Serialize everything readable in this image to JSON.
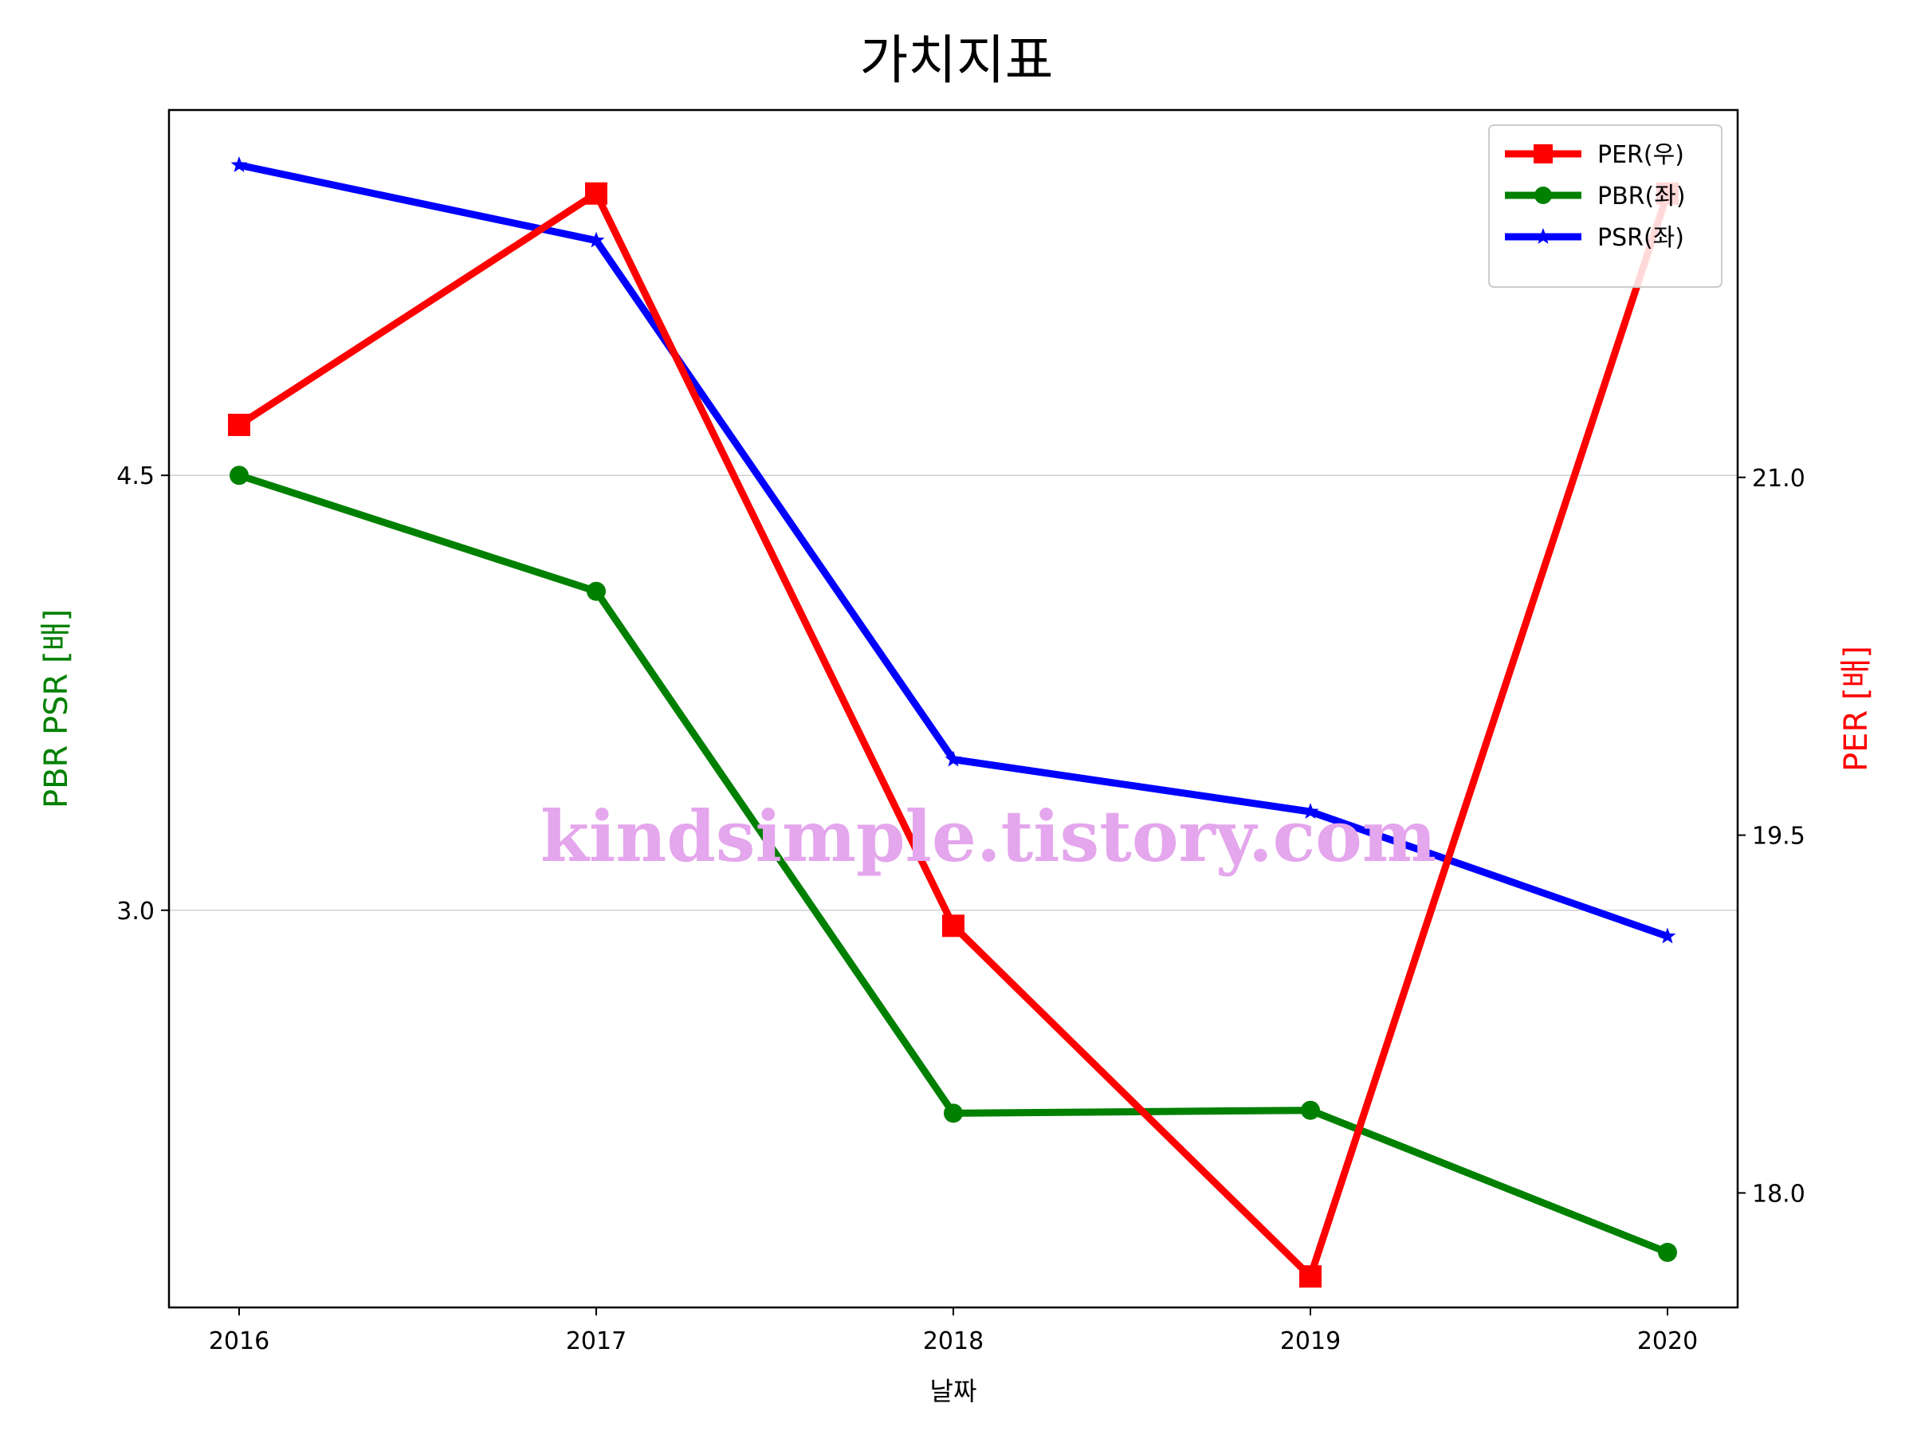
{
  "chart_data": {
    "type": "line",
    "title": "가치지표",
    "xlabel": "날짜",
    "ylabel_left": "PBR PSR [배]",
    "ylabel_right": "PER [배]",
    "categories": [
      "2016",
      "2017",
      "2018",
      "2019",
      "2020"
    ],
    "ylim_left": [
      1.63,
      5.76
    ],
    "yticks_left": [
      3.0,
      4.5
    ],
    "yticks_left_labels": [
      "3.0",
      "4.5"
    ],
    "ylim_right": [
      17.52,
      22.54
    ],
    "yticks_right": [
      18.0,
      19.5,
      21.0
    ],
    "yticks_right_labels": [
      "18.0",
      "19.5",
      "21.0"
    ],
    "grid": "horizontal (left axis)",
    "legend_position": "top-right",
    "series": [
      {
        "name": "PER(우)",
        "axis": "right",
        "color": "#ff0000",
        "marker": "square",
        "values": [
          21.22,
          22.19,
          19.12,
          17.65,
          22.19
        ]
      },
      {
        "name": "PBR(좌)",
        "axis": "left",
        "color": "#008000",
        "marker": "circle",
        "values": [
          4.5,
          4.1,
          2.3,
          2.31,
          1.82
        ]
      },
      {
        "name": "PSR(좌)",
        "axis": "left",
        "color": "#0000ff",
        "marker": "star",
        "values": [
          5.57,
          5.31,
          3.52,
          3.34,
          2.91
        ]
      }
    ]
  },
  "watermark": "kindsimple.tistory.com"
}
